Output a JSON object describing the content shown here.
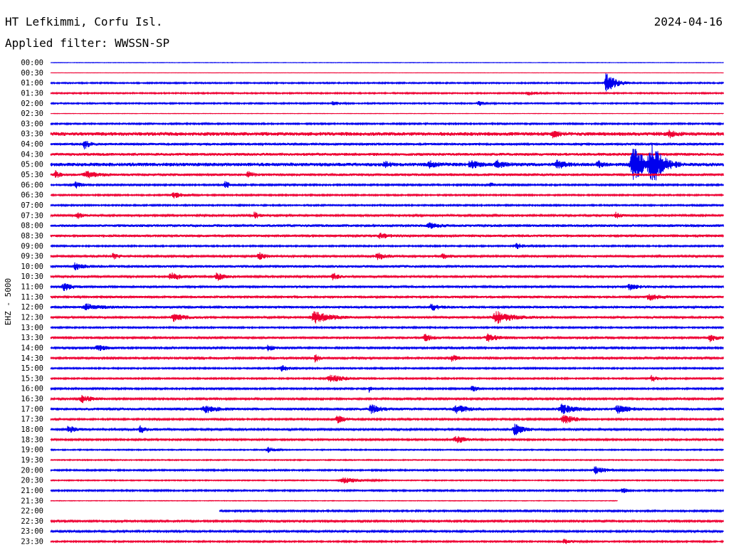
{
  "header": {
    "station": "HT Lefkimmi, Corfu Isl.",
    "date": "2024-04-16",
    "filter": "Applied filter: WWSSN-SP",
    "channel": "EHZ - 5000"
  },
  "colors": {
    "even_trace": "#0000ee",
    "odd_trace": "#ee0033",
    "text": "#000000",
    "background": "#ffffff"
  },
  "chart_data": {
    "type": "line",
    "subtype": "helicorder",
    "title": "HT Lefkimmi, Corfu Isl.",
    "subtitle": "Applied filter: WWSSN-SP",
    "ylabel": "EHZ - 5000",
    "row_labels": [
      "00:00",
      "00:30",
      "01:00",
      "01:30",
      "02:00",
      "02:30",
      "03:00",
      "03:30",
      "04:00",
      "04:30",
      "05:00",
      "05:30",
      "06:00",
      "06:30",
      "07:00",
      "07:30",
      "08:00",
      "08:30",
      "09:00",
      "09:30",
      "10:00",
      "10:30",
      "11:00",
      "11:30",
      "12:00",
      "12:30",
      "13:00",
      "13:30",
      "14:00",
      "14:30",
      "15:00",
      "15:30",
      "16:00",
      "16:30",
      "17:00",
      "17:30",
      "18:00",
      "18:30",
      "19:00",
      "19:30",
      "20:00",
      "20:30",
      "21:00",
      "21:30",
      "22:00",
      "22:30",
      "23:00",
      "23:30"
    ],
    "row_minutes": 30,
    "row_noise": [
      0.3,
      0.2,
      0.9,
      0.9,
      0.9,
      0.3,
      1.0,
      2.6,
      1.6,
      2.0,
      2.5,
      1.8,
      1.1,
      1.0,
      1.0,
      1.3,
      1.8,
      1.6,
      1.0,
      1.4,
      1.8,
      1.4,
      1.5,
      1.6,
      1.6,
      1.5,
      1.0,
      1.5,
      1.2,
      1.3,
      1.0,
      1.0,
      1.1,
      1.2,
      1.8,
      1.1,
      1.3,
      1.1,
      0.8,
      0.7,
      1.0,
      0.7,
      1.0,
      0.4,
      1.1,
      1.2,
      1.2,
      1.0
    ],
    "data_gaps_minutes": [
      {
        "row": "21:30",
        "from": 25.3,
        "to": 30
      },
      {
        "row": "22:00",
        "from": 0,
        "to": 7.5
      }
    ],
    "events": [
      {
        "row": "01:00",
        "minute": 24.8,
        "amplitude": 15,
        "duration_min": 0.8
      },
      {
        "row": "01:30",
        "minute": 21.3,
        "amplitude": 3,
        "duration_min": 0.7
      },
      {
        "row": "02:00",
        "minute": 12.6,
        "amplitude": 3,
        "duration_min": 0.6
      },
      {
        "row": "02:00",
        "minute": 19.1,
        "amplitude": 3,
        "duration_min": 0.6
      },
      {
        "row": "03:30",
        "minute": 22.4,
        "amplitude": 4,
        "duration_min": 0.5
      },
      {
        "row": "03:30",
        "minute": 27.6,
        "amplitude": 4,
        "duration_min": 0.5
      },
      {
        "row": "04:00",
        "minute": 1.5,
        "amplitude": 6,
        "duration_min": 0.5
      },
      {
        "row": "05:00",
        "minute": 14.9,
        "amplitude": 5,
        "duration_min": 0.4
      },
      {
        "row": "05:00",
        "minute": 16.9,
        "amplitude": 4,
        "duration_min": 0.6
      },
      {
        "row": "05:00",
        "minute": 18.7,
        "amplitude": 6,
        "duration_min": 0.6
      },
      {
        "row": "05:00",
        "minute": 19.9,
        "amplitude": 5,
        "duration_min": 0.6
      },
      {
        "row": "05:00",
        "minute": 22.6,
        "amplitude": 6,
        "duration_min": 0.6
      },
      {
        "row": "05:00",
        "minute": 24.4,
        "amplitude": 5,
        "duration_min": 0.4
      },
      {
        "row": "05:00",
        "minute": 26.0,
        "amplitude": 24,
        "duration_min": 1.1
      },
      {
        "row": "05:00",
        "minute": 26.8,
        "amplitude": 26,
        "duration_min": 1.0
      },
      {
        "row": "05:30",
        "minute": 0.2,
        "amplitude": 6,
        "duration_min": 0.3
      },
      {
        "row": "05:30",
        "minute": 1.6,
        "amplitude": 5,
        "duration_min": 0.9
      },
      {
        "row": "05:30",
        "minute": 8.8,
        "amplitude": 4,
        "duration_min": 0.5
      },
      {
        "row": "06:00",
        "minute": 1.1,
        "amplitude": 5,
        "duration_min": 0.6
      },
      {
        "row": "06:00",
        "minute": 7.8,
        "amplitude": 5,
        "duration_min": 0.5
      },
      {
        "row": "06:00",
        "minute": 19.6,
        "amplitude": 3,
        "duration_min": 0.5
      },
      {
        "row": "06:30",
        "minute": 5.5,
        "amplitude": 4,
        "duration_min": 0.9
      },
      {
        "row": "07:30",
        "minute": 1.2,
        "amplitude": 4,
        "duration_min": 0.6
      },
      {
        "row": "07:30",
        "minute": 9.1,
        "amplitude": 5,
        "duration_min": 0.4
      },
      {
        "row": "07:30",
        "minute": 25.2,
        "amplitude": 4,
        "duration_min": 0.5
      },
      {
        "row": "08:00",
        "minute": 16.9,
        "amplitude": 3,
        "duration_min": 0.8
      },
      {
        "row": "08:30",
        "minute": 14.7,
        "amplitude": 3,
        "duration_min": 1.0
      },
      {
        "row": "09:00",
        "minute": 20.8,
        "amplitude": 4,
        "duration_min": 0.6
      },
      {
        "row": "09:30",
        "minute": 2.8,
        "amplitude": 4,
        "duration_min": 0.5
      },
      {
        "row": "09:30",
        "minute": 9.3,
        "amplitude": 5,
        "duration_min": 0.6
      },
      {
        "row": "09:30",
        "minute": 14.6,
        "amplitude": 5,
        "duration_min": 0.8
      },
      {
        "row": "09:30",
        "minute": 17.5,
        "amplitude": 4,
        "duration_min": 0.6
      },
      {
        "row": "10:00",
        "minute": 1.1,
        "amplitude": 4,
        "duration_min": 0.7
      },
      {
        "row": "10:30",
        "minute": 5.4,
        "amplitude": 5,
        "duration_min": 1.0
      },
      {
        "row": "10:30",
        "minute": 7.4,
        "amplitude": 6,
        "duration_min": 0.6
      },
      {
        "row": "10:30",
        "minute": 12.6,
        "amplitude": 5,
        "duration_min": 0.5
      },
      {
        "row": "11:00",
        "minute": 0.6,
        "amplitude": 5,
        "duration_min": 0.8
      },
      {
        "row": "11:00",
        "minute": 25.8,
        "amplitude": 4,
        "duration_min": 0.8
      },
      {
        "row": "11:30",
        "minute": 26.7,
        "amplitude": 4,
        "duration_min": 1.0
      },
      {
        "row": "12:00",
        "minute": 1.6,
        "amplitude": 4,
        "duration_min": 1.2
      },
      {
        "row": "12:00",
        "minute": 17.0,
        "amplitude": 5,
        "duration_min": 0.6
      },
      {
        "row": "12:30",
        "minute": 5.5,
        "amplitude": 5,
        "duration_min": 0.9
      },
      {
        "row": "12:30",
        "minute": 11.8,
        "amplitude": 8,
        "duration_min": 1.4
      },
      {
        "row": "12:30",
        "minute": 19.9,
        "amplitude": 8,
        "duration_min": 1.4
      },
      {
        "row": "13:30",
        "minute": 16.7,
        "amplitude": 5,
        "duration_min": 0.6
      },
      {
        "row": "13:30",
        "minute": 19.5,
        "amplitude": 5,
        "duration_min": 0.9
      },
      {
        "row": "13:30",
        "minute": 29.4,
        "amplitude": 5,
        "duration_min": 0.6
      },
      {
        "row": "14:00",
        "minute": 2.1,
        "amplitude": 4,
        "duration_min": 0.9
      },
      {
        "row": "14:00",
        "minute": 9.7,
        "amplitude": 4,
        "duration_min": 0.6
      },
      {
        "row": "14:30",
        "minute": 11.8,
        "amplitude": 9,
        "duration_min": 0.3
      },
      {
        "row": "14:30",
        "minute": 17.9,
        "amplitude": 5,
        "duration_min": 0.5
      },
      {
        "row": "15:00",
        "minute": 10.3,
        "amplitude": 4,
        "duration_min": 0.8
      },
      {
        "row": "15:30",
        "minute": 12.5,
        "amplitude": 5,
        "duration_min": 1.4
      },
      {
        "row": "15:30",
        "minute": 26.8,
        "amplitude": 5,
        "duration_min": 0.5
      },
      {
        "row": "16:00",
        "minute": 14.2,
        "amplitude": 6,
        "duration_min": 0.2
      },
      {
        "row": "16:00",
        "minute": 18.8,
        "amplitude": 4,
        "duration_min": 0.6
      },
      {
        "row": "16:30",
        "minute": 1.4,
        "amplitude": 5,
        "duration_min": 0.9
      },
      {
        "row": "17:00",
        "minute": 6.9,
        "amplitude": 5,
        "duration_min": 1.0
      },
      {
        "row": "17:00",
        "minute": 14.3,
        "amplitude": 6,
        "duration_min": 0.8
      },
      {
        "row": "17:00",
        "minute": 18.1,
        "amplitude": 5,
        "duration_min": 1.0
      },
      {
        "row": "17:00",
        "minute": 22.8,
        "amplitude": 6,
        "duration_min": 1.2
      },
      {
        "row": "17:00",
        "minute": 25.3,
        "amplitude": 5,
        "duration_min": 0.9
      },
      {
        "row": "17:30",
        "minute": 12.8,
        "amplitude": 6,
        "duration_min": 0.7
      },
      {
        "row": "17:30",
        "minute": 22.9,
        "amplitude": 6,
        "duration_min": 1.1
      },
      {
        "row": "18:00",
        "minute": 0.8,
        "amplitude": 5,
        "duration_min": 0.7
      },
      {
        "row": "18:00",
        "minute": 4.0,
        "amplitude": 5,
        "duration_min": 0.6
      },
      {
        "row": "18:00",
        "minute": 20.7,
        "amplitude": 8,
        "duration_min": 0.8
      },
      {
        "row": "18:30",
        "minute": 18.1,
        "amplitude": 5,
        "duration_min": 1.0
      },
      {
        "row": "19:00",
        "minute": 9.7,
        "amplitude": 4,
        "duration_min": 0.6
      },
      {
        "row": "20:00",
        "minute": 24.3,
        "amplitude": 5,
        "duration_min": 0.9
      },
      {
        "row": "20:30",
        "minute": 13.1,
        "amplitude": 4,
        "duration_min": 1.5
      },
      {
        "row": "21:00",
        "minute": 25.5,
        "amplitude": 5,
        "duration_min": 0.4
      },
      {
        "row": "23:30",
        "minute": 22.9,
        "amplitude": 3,
        "duration_min": 0.8
      }
    ],
    "xlim_minutes": [
      0,
      30
    ],
    "grid": false,
    "legend": "none"
  }
}
